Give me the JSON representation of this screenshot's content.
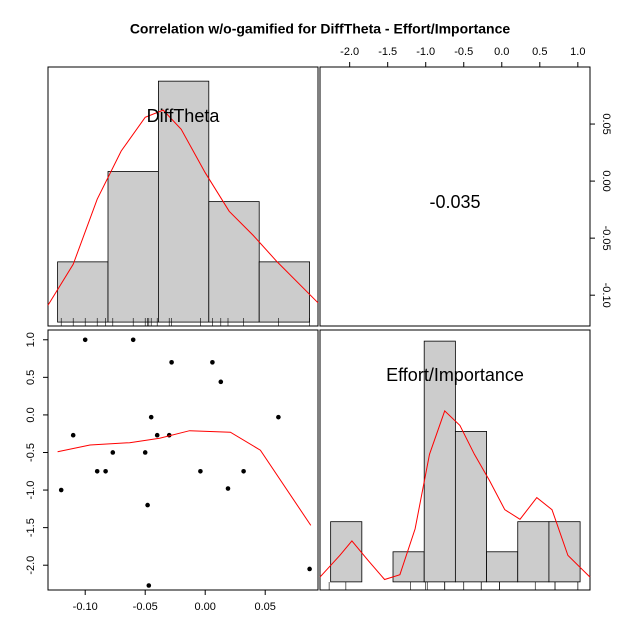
{
  "title": "Correlation w/o-gamified for DiffTheta - Effort/Importance",
  "chart_data": [
    {
      "type": "histogram",
      "name": "DiffTheta",
      "bins": [
        -0.123,
        -0.081,
        -0.039,
        0.003,
        0.045,
        0.087
      ],
      "counts": [
        2,
        5,
        8,
        4,
        2
      ],
      "ylim": [
        -0.13,
        8.47
      ],
      "color": "#cccccc",
      "density": {
        "x": [
          -0.131,
          -0.11,
          -0.09,
          -0.07,
          -0.05,
          -0.035,
          -0.02,
          0.0,
          0.02,
          0.04,
          0.06,
          0.094
        ],
        "y": [
          0.56,
          1.92,
          4.08,
          5.68,
          6.8,
          7.04,
          6.4,
          4.96,
          3.68,
          2.88,
          2.0,
          0.64
        ],
        "color": "#ff0000"
      }
    },
    {
      "type": "correlation",
      "value": -0.035,
      "xlim": [
        -2.39,
        1.16
      ],
      "xticks": [
        {
          "value": -2.0,
          "label": "-2.0"
        },
        -1.5,
        {
          "value": -1.0,
          "label": "-1.0"
        },
        -0.5,
        {
          "value": 0.0,
          "label": "0.0"
        },
        0.5,
        {
          "value": 1.0,
          "label": "1.0"
        }
      ],
      "ylim": [
        -0.127,
        0.1
      ],
      "yticks": [
        0.05,
        {
          "value": 0.0,
          "label": "0.00"
        },
        -0.05,
        {
          "value": -0.1,
          "label": "-0.10"
        }
      ]
    },
    {
      "type": "scatter",
      "x": [
        -0.12,
        -0.11,
        -0.1,
        -0.09,
        -0.083,
        -0.077,
        -0.06,
        -0.05,
        -0.048,
        -0.047,
        -0.045,
        -0.04,
        -0.03,
        -0.028,
        -0.004,
        0.006,
        0.013,
        0.019,
        0.032,
        0.061,
        0.087
      ],
      "y": [
        -1.0,
        -0.27,
        1.0,
        -0.75,
        -0.75,
        -0.5,
        1.0,
        -0.5,
        -1.2,
        -2.27,
        -0.03,
        -0.27,
        -0.27,
        0.7,
        -0.75,
        0.7,
        0.44,
        -0.98,
        -0.75,
        -0.03,
        -2.05
      ],
      "color": "#000000",
      "xlim": [
        -0.131,
        0.094
      ],
      "xticks": [
        {
          "value": -0.1,
          "label": "-0.10"
        },
        -0.05,
        {
          "value": 0.0,
          "label": "0.00"
        },
        0.05
      ],
      "ylim": [
        -2.33,
        1.13
      ],
      "yticks": [
        {
          "value": 1.0,
          "label": "1.0"
        },
        0.5,
        {
          "value": 0.0,
          "label": "0.0"
        },
        -0.5,
        {
          "value": -1.0,
          "label": "-1.0"
        },
        -1.5,
        {
          "value": -2.0,
          "label": "-2.0"
        }
      ],
      "lowess": {
        "x": [
          -0.123,
          -0.096,
          -0.063,
          -0.038,
          -0.013,
          0.021,
          0.046,
          0.088
        ],
        "y": [
          -0.49,
          -0.4,
          -0.37,
          -0.31,
          -0.21,
          -0.23,
          -0.47,
          -1.47
        ],
        "color": "#ff0000"
      }
    },
    {
      "type": "histogram",
      "name": "Effort/Importance",
      "bins": [
        -2.25,
        -1.84,
        -1.43,
        -1.02,
        -0.61,
        -0.2,
        0.21,
        0.62,
        1.03
      ],
      "counts": [
        2,
        0,
        1,
        8,
        5,
        1,
        2,
        2
      ],
      "ylim": [
        -0.27,
        8.37
      ],
      "color": "#cccccc",
      "density": {
        "x": [
          -2.39,
          -2.13,
          -1.97,
          -1.76,
          -1.54,
          -1.34,
          -1.14,
          -0.95,
          -0.75,
          -0.55,
          -0.36,
          -0.16,
          0.04,
          0.24,
          0.46,
          0.66,
          0.87,
          1.16
        ],
        "y": [
          0.16,
          0.88,
          1.36,
          0.72,
          0.08,
          0.24,
          1.76,
          4.24,
          5.68,
          5.2,
          4.24,
          3.36,
          2.4,
          2.08,
          2.8,
          2.4,
          0.88,
          0.16
        ],
        "color": "#ff0000"
      }
    }
  ]
}
